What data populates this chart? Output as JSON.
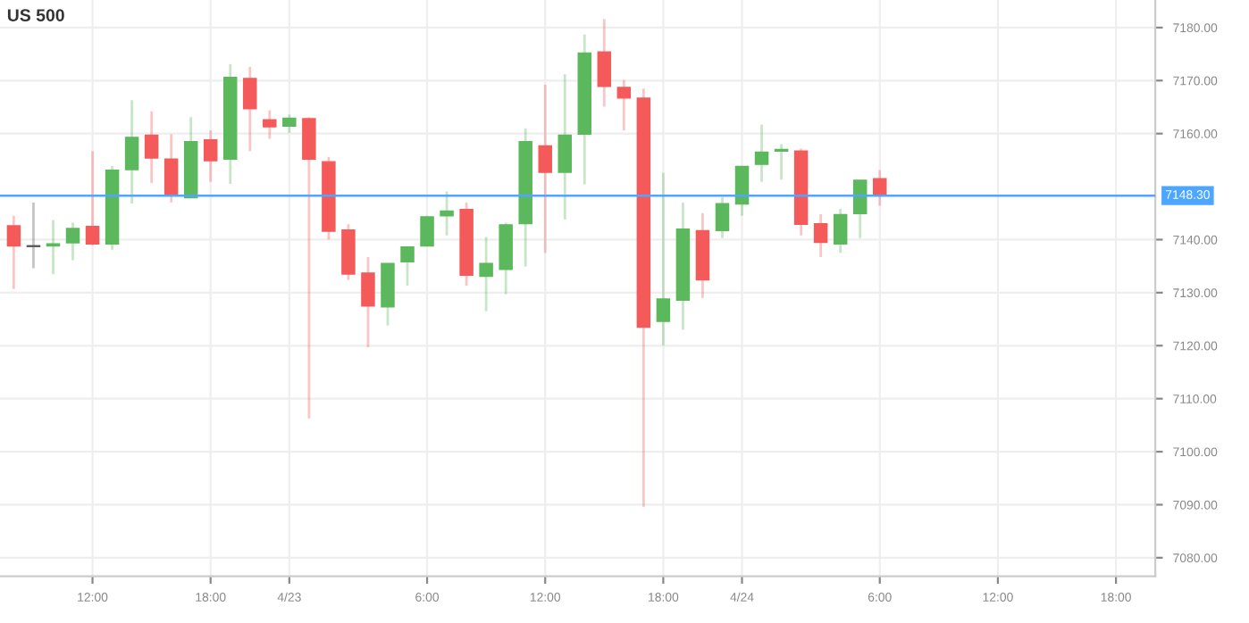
{
  "chart_data": {
    "type": "candlestick",
    "title": "US 500",
    "categories": [
      null,
      null,
      null,
      null,
      "12:00",
      null,
      null,
      null,
      null,
      null,
      "18:00",
      null,
      null,
      null,
      "4/23",
      null,
      null,
      null,
      null,
      null,
      null,
      "6:00",
      null,
      null,
      null,
      null,
      null,
      "12:00",
      null,
      null,
      null,
      null,
      null,
      "18:00",
      null,
      null,
      null,
      "4/24",
      null,
      null,
      null,
      null,
      null,
      null,
      "6:00",
      null,
      null,
      null,
      null,
      null,
      "12:00",
      null,
      null,
      null,
      null,
      null,
      "18:00",
      null
    ],
    "ohlc": [
      [
        7142.6,
        7144.5,
        7130.7,
        7138.8
      ],
      [
        7138.7,
        7147.0,
        7134.6,
        7138.7
      ],
      [
        7138.8,
        7143.7,
        7133.5,
        7139.2
      ],
      [
        7139.4,
        7143.2,
        7136.1,
        7142.1
      ],
      [
        7142.5,
        7156.7,
        7138.9,
        7139.2
      ],
      [
        7139.2,
        7153.9,
        7138.1,
        7153.1
      ],
      [
        7153.2,
        7166.3,
        7146.8,
        7159.3
      ],
      [
        7159.7,
        7164.2,
        7150.7,
        7155.4
      ],
      [
        7155.2,
        7159.9,
        7147.0,
        7148.3
      ],
      [
        7147.9,
        7163.1,
        7147.9,
        7158.5
      ],
      [
        7158.8,
        7160.6,
        7150.9,
        7154.9
      ],
      [
        7155.2,
        7173.1,
        7150.5,
        7170.6
      ],
      [
        7170.4,
        7172.6,
        7156.7,
        7164.7
      ],
      [
        7162.6,
        7164.4,
        7159.0,
        7161.3
      ],
      [
        7161.4,
        7163.6,
        7160.1,
        7162.9
      ],
      [
        7162.8,
        7163.1,
        7106.3,
        7155.2
      ],
      [
        7154.7,
        7155.6,
        7140.0,
        7141.6
      ],
      [
        7141.8,
        7142.9,
        7132.4,
        7133.5
      ],
      [
        7133.7,
        7136.7,
        7119.7,
        7127.5
      ],
      [
        7127.3,
        7135.5,
        7123.8,
        7135.5
      ],
      [
        7135.8,
        7138.6,
        7131.3,
        7138.6
      ],
      [
        7138.8,
        7144.5,
        7138.8,
        7144.3
      ],
      [
        7144.5,
        7149.1,
        7140.8,
        7145.4
      ],
      [
        7145.7,
        7147.0,
        7131.3,
        7133.3
      ],
      [
        7133.1,
        7140.5,
        7126.5,
        7135.5
      ],
      [
        7134.4,
        7143.2,
        7129.7,
        7142.8
      ],
      [
        7143.0,
        7161.0,
        7134.9,
        7158.5
      ],
      [
        7157.7,
        7169.2,
        7137.5,
        7152.7
      ],
      [
        7152.7,
        7171.2,
        7143.8,
        7159.7
      ],
      [
        7159.9,
        7178.7,
        7150.4,
        7175.2
      ],
      [
        7175.4,
        7181.6,
        7165.1,
        7168.9
      ],
      [
        7168.7,
        7170.1,
        7160.6,
        7166.7
      ],
      [
        7166.7,
        7168.5,
        7089.6,
        7123.5
      ],
      [
        7124.6,
        7152.6,
        7120.0,
        7128.8
      ],
      [
        7128.6,
        7147.0,
        7123.0,
        7142.0
      ],
      [
        7141.7,
        7145.0,
        7129.0,
        7132.4
      ],
      [
        7141.7,
        7148.0,
        7140.3,
        7146.8
      ],
      [
        7146.7,
        7153.8,
        7144.5,
        7153.8
      ],
      [
        7154.2,
        7161.7,
        7150.9,
        7156.5
      ],
      [
        7156.7,
        7158.0,
        7151.3,
        7157.0
      ],
      [
        7156.7,
        7157.2,
        7140.8,
        7142.9
      ],
      [
        7143.0,
        7144.8,
        7136.7,
        7139.5
      ],
      [
        7139.2,
        7145.8,
        7137.5,
        7144.7
      ],
      [
        7144.9,
        7151.2,
        7140.3,
        7151.2
      ],
      [
        7151.5,
        7153.1,
        7146.4,
        7148.3
      ],
      null,
      null,
      null,
      null,
      null,
      null,
      null,
      null,
      null,
      null,
      null,
      null,
      null
    ],
    "colors": [
      "#f55a5a",
      "#555555",
      "#5cb85c",
      "#5cb85c",
      "#f55a5a",
      "#5cb85c",
      "#5cb85c",
      "#f55a5a",
      "#f55a5a",
      "#5cb85c",
      "#f55a5a",
      "#5cb85c",
      "#f55a5a",
      "#f55a5a",
      "#5cb85c",
      "#f55a5a",
      "#f55a5a",
      "#f55a5a",
      "#f55a5a",
      "#5cb85c",
      "#5cb85c",
      "#5cb85c",
      "#5cb85c",
      "#f55a5a",
      "#5cb85c",
      "#5cb85c",
      "#5cb85c",
      "#f55a5a",
      "#5cb85c",
      "#5cb85c",
      "#f55a5a",
      "#f55a5a",
      "#f55a5a",
      "#5cb85c",
      "#5cb85c",
      "#f55a5a",
      "#5cb85c",
      "#5cb85c",
      "#5cb85c",
      "#5cb85c",
      "#f55a5a",
      "#f55a5a",
      "#5cb85c",
      "#5cb85c",
      "#f55a5a",
      null,
      null,
      null,
      null,
      null,
      null,
      null,
      null,
      null,
      null,
      null,
      null,
      null
    ],
    "ylim": [
      7076.5,
      7185.2
    ],
    "yticks": [
      {
        "value": 7080,
        "label": "7080.00"
      },
      {
        "value": 7090,
        "label": "7090.00"
      },
      {
        "value": 7100,
        "label": "7100.00"
      },
      {
        "value": 7110,
        "label": "7110.00"
      },
      {
        "value": 7120,
        "label": "7120.00"
      },
      {
        "value": 7130,
        "label": "7130.00"
      },
      {
        "value": 7140,
        "label": "7140.00"
      },
      {
        "value": 7160,
        "label": "7160.00"
      },
      {
        "value": 7170,
        "label": "7170.00"
      },
      {
        "value": 7180,
        "label": "7180.00"
      }
    ],
    "ref_lines": [
      {
        "axis": "y",
        "value": 7148.3,
        "label": "7148.30",
        "color": "#4da6ff"
      }
    ],
    "grid": true
  }
}
